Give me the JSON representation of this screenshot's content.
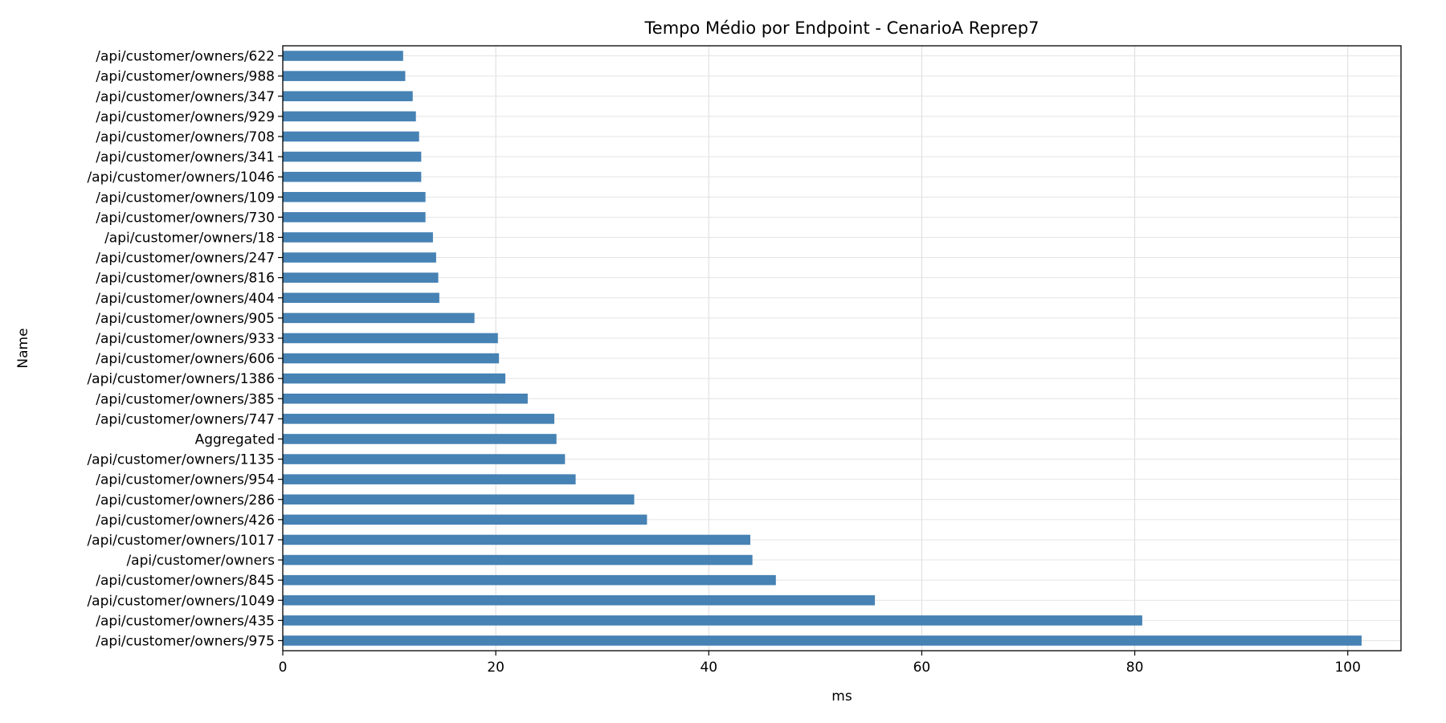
{
  "chart_data": {
    "type": "bar",
    "orientation": "horizontal",
    "title": "Tempo Médio por Endpoint - CenarioA Reprep7",
    "xlabel": "ms",
    "ylabel": "Name",
    "xlim": [
      0,
      105
    ],
    "xticks": [
      0,
      20,
      40,
      60,
      80,
      100
    ],
    "grid": true,
    "bar_color": "#4682b4",
    "categories": [
      "/api/customer/owners/622",
      "/api/customer/owners/988",
      "/api/customer/owners/347",
      "/api/customer/owners/929",
      "/api/customer/owners/708",
      "/api/customer/owners/341",
      "/api/customer/owners/1046",
      "/api/customer/owners/109",
      "/api/customer/owners/730",
      "/api/customer/owners/18",
      "/api/customer/owners/247",
      "/api/customer/owners/816",
      "/api/customer/owners/404",
      "/api/customer/owners/905",
      "/api/customer/owners/933",
      "/api/customer/owners/606",
      "/api/customer/owners/1386",
      "/api/customer/owners/385",
      "/api/customer/owners/747",
      "Aggregated",
      "/api/customer/owners/1135",
      "/api/customer/owners/954",
      "/api/customer/owners/286",
      "/api/customer/owners/426",
      "/api/customer/owners/1017",
      "/api/customer/owners",
      "/api/customer/owners/845",
      "/api/customer/owners/1049",
      "/api/customer/owners/435",
      "/api/customer/owners/975"
    ],
    "values": [
      11.3,
      11.5,
      12.2,
      12.5,
      12.8,
      13.0,
      13.0,
      13.4,
      13.4,
      14.1,
      14.4,
      14.6,
      14.7,
      18.0,
      20.2,
      20.3,
      20.9,
      23.0,
      25.5,
      25.7,
      26.5,
      27.5,
      33.0,
      34.2,
      43.9,
      44.1,
      46.3,
      55.6,
      80.7,
      101.3
    ]
  }
}
